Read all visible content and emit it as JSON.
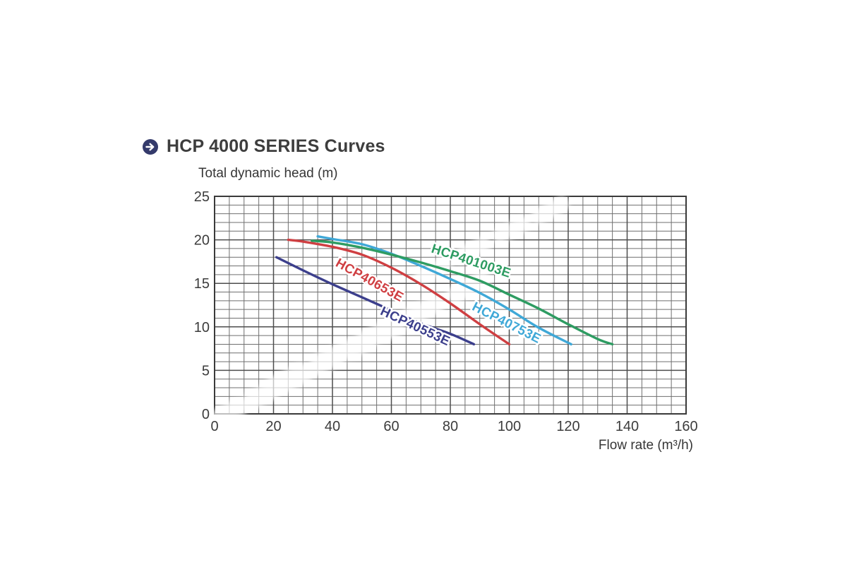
{
  "page": {
    "title": "HCP 4000 SERIES Curves",
    "title_icon": "arrow-right-circle-icon",
    "icon_color": "#343a6b",
    "background": "#ffffff"
  },
  "chart_data": {
    "type": "line",
    "title": "HCP 4000 SERIES Curves",
    "xlabel": "Flow rate (m³/h)",
    "ylabel": "Total dynamic head (m)",
    "xlim": [
      0,
      160
    ],
    "ylim": [
      0,
      25
    ],
    "x_ticks": [
      0,
      20,
      40,
      60,
      80,
      100,
      120,
      140,
      160
    ],
    "y_ticks": [
      0,
      5,
      10,
      15,
      20,
      25
    ],
    "x_minor_step": 5,
    "y_minor_step": 1,
    "grid": true,
    "grid_minor_color": "#6f6f6f",
    "grid_major_color": "#4d4d4d",
    "border_color": "#3a3a3a",
    "tick_color": "#3c3c3c",
    "legend_position": "on-curve-labels",
    "series": [
      {
        "name": "HCP40553E",
        "color": "#3c3f8c",
        "points": [
          [
            21,
            18
          ],
          [
            30,
            16.5
          ],
          [
            40,
            14.9
          ],
          [
            50,
            13.4
          ],
          [
            60,
            11.9
          ],
          [
            70,
            10.4
          ],
          [
            80,
            9.2
          ],
          [
            88,
            8
          ]
        ],
        "label_x": 68,
        "label_y": 10.0,
        "label_rotation": 25
      },
      {
        "name": "HCP40653E",
        "color": "#cf3f42",
        "points": [
          [
            25,
            20
          ],
          [
            30,
            19.8
          ],
          [
            40,
            19.2
          ],
          [
            50,
            18.3
          ],
          [
            60,
            16.8
          ],
          [
            70,
            14.9
          ],
          [
            80,
            12.7
          ],
          [
            90,
            10.3
          ],
          [
            100,
            8
          ]
        ],
        "label_x": 52.5,
        "label_y": 15.3,
        "label_rotation": 29
      },
      {
        "name": "HCP40753E",
        "color": "#3fa8d7",
        "points": [
          [
            35,
            20.4
          ],
          [
            40,
            20.1
          ],
          [
            50,
            19.5
          ],
          [
            60,
            18.4
          ],
          [
            70,
            17
          ],
          [
            80,
            15.5
          ],
          [
            90,
            13.9
          ],
          [
            100,
            12
          ],
          [
            110,
            9.9
          ],
          [
            121,
            8
          ]
        ],
        "label_x": 99,
        "label_y": 10.4,
        "label_rotation": 27
      },
      {
        "name": "HCP401003E",
        "color": "#2e9c62",
        "points": [
          [
            33,
            19.9
          ],
          [
            40,
            19.7
          ],
          [
            50,
            19.1
          ],
          [
            60,
            18.3
          ],
          [
            70,
            17.4
          ],
          [
            80,
            16.4
          ],
          [
            90,
            15.3
          ],
          [
            100,
            13.7
          ],
          [
            110,
            12.1
          ],
          [
            120,
            10.3
          ],
          [
            130,
            8.6
          ],
          [
            135,
            8
          ]
        ],
        "label_x": 87,
        "label_y": 17.5,
        "label_rotation": 18
      }
    ]
  }
}
